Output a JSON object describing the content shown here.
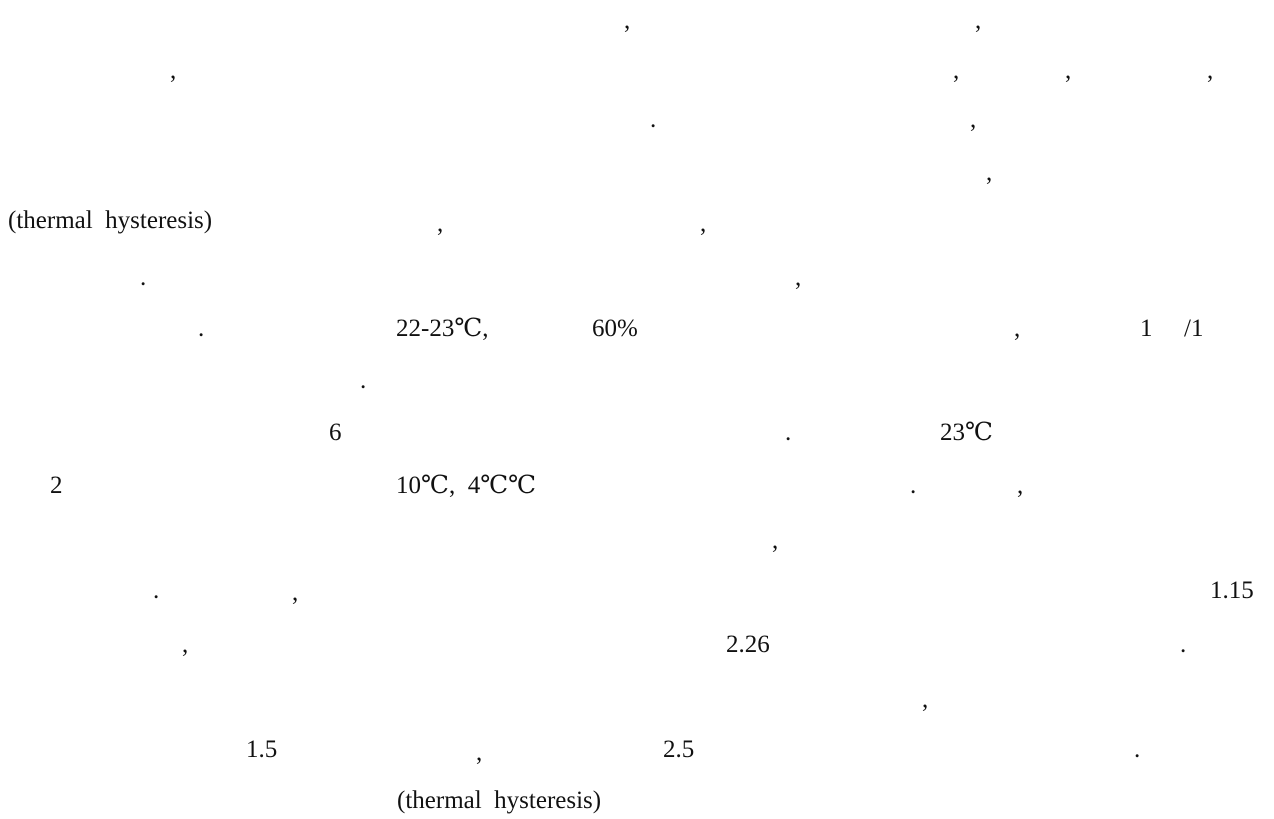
{
  "lines": [
    {
      "fragments": [
        ",",
        ","
      ]
    },
    {
      "fragments": [
        ",",
        ",",
        ",",
        ","
      ]
    },
    {
      "fragments": [
        ".",
        ","
      ]
    },
    {
      "fragments": [
        ","
      ]
    },
    {
      "fragments": [
        "(thermal  hysteresis)",
        ",",
        ","
      ]
    },
    {
      "fragments": [
        ".",
        ","
      ]
    },
    {
      "fragments": [
        ".",
        "22-23℃,",
        "60%",
        ",",
        "1",
        "/1"
      ]
    },
    {
      "fragments": [
        "."
      ]
    },
    {
      "fragments": [
        "6",
        ".",
        "23℃"
      ]
    },
    {
      "fragments": [
        "2",
        "10℃,  4℃℃",
        ".",
        ","
      ]
    },
    {
      "fragments": [
        ","
      ]
    },
    {
      "fragments": [
        ".",
        ",",
        "1.15"
      ]
    },
    {
      "fragments": [
        ",",
        "2.26",
        "."
      ]
    },
    {
      "fragments": [
        ","
      ]
    },
    {
      "fragments": [
        "1.5",
        ",",
        "2.5",
        "."
      ]
    },
    {
      "fragments": [
        "(thermal  hysteresis)"
      ]
    }
  ]
}
